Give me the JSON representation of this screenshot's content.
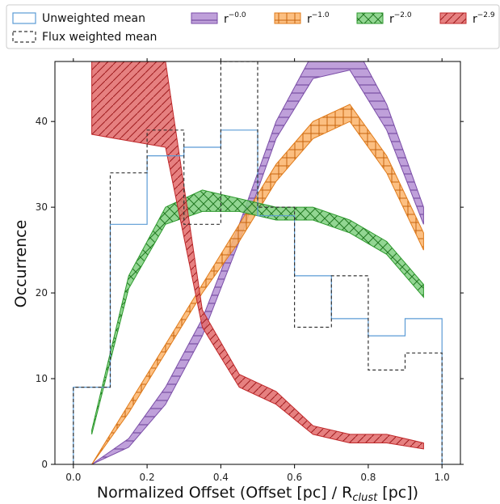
{
  "chart_data": {
    "type": "line",
    "xlabel_main": "Normalized Offset (Offset [pc] / R",
    "xlabel_sub": "clust",
    "xlabel_tail": " [pc])",
    "ylabel": "Occurrence",
    "xlim": [
      -0.05,
      1.05
    ],
    "ylim": [
      0,
      47
    ],
    "xticks": [
      "0.0",
      "0.2",
      "0.4",
      "0.6",
      "0.8",
      "1.0"
    ],
    "xtick_values": [
      0,
      0.2,
      0.4,
      0.6,
      0.8,
      1.0
    ],
    "yticks": [
      "0",
      "10",
      "20",
      "30",
      "40"
    ],
    "ytick_values": [
      0,
      10,
      20,
      30,
      40
    ],
    "legend_position": "top",
    "histograms": [
      {
        "name": "Unweighted mean",
        "style": "solid",
        "color": "#5b9bd5",
        "bin_edges": [
          0,
          0.1,
          0.2,
          0.3,
          0.4,
          0.5,
          0.6,
          0.7,
          0.8,
          0.9,
          1.0
        ],
        "counts": [
          9,
          28,
          36,
          37,
          39,
          29,
          22,
          17,
          15,
          17
        ]
      },
      {
        "name": "Flux weighted mean",
        "style": "dashed",
        "color": "#333333",
        "bin_edges": [
          0,
          0.1,
          0.2,
          0.3,
          0.4,
          0.5,
          0.6,
          0.7,
          0.8,
          0.9,
          1.0
        ],
        "counts": [
          9,
          34,
          39,
          28,
          47,
          30,
          16,
          22,
          11,
          13
        ]
      }
    ],
    "bands": [
      {
        "label_base": "r",
        "label_exp": "−0.0",
        "fill": "#b48fd4",
        "edge": "#7b4ea8",
        "hatch": "horizontal",
        "x": [
          0.05,
          0.15,
          0.25,
          0.35,
          0.45,
          0.55,
          0.65,
          0.75,
          0.85,
          0.95
        ],
        "lower": [
          0,
          2,
          7,
          15,
          26,
          38,
          45,
          46,
          39,
          28
        ],
        "upper": [
          0,
          3,
          9,
          17,
          28,
          40,
          48,
          50,
          42,
          30
        ]
      },
      {
        "label_base": "r",
        "label_exp": "−1.0",
        "fill": "#fbb46b",
        "edge": "#e07b1a",
        "hatch": "grid",
        "x": [
          0.05,
          0.15,
          0.25,
          0.35,
          0.45,
          0.55,
          0.65,
          0.75,
          0.85,
          0.95
        ],
        "lower": [
          0,
          6,
          13,
          20,
          26,
          33,
          38,
          40,
          34,
          25
        ],
        "upper": [
          0,
          7,
          14,
          21,
          28,
          35,
          40,
          42,
          36,
          27
        ]
      },
      {
        "label_base": "r",
        "label_exp": "−2.0",
        "fill": "#7fcf7f",
        "edge": "#2e9a2e",
        "hatch": "cross",
        "x": [
          0.05,
          0.15,
          0.25,
          0.35,
          0.45,
          0.55,
          0.65,
          0.75,
          0.85,
          0.95
        ],
        "lower": [
          3.5,
          20.5,
          28,
          29.5,
          29.5,
          28.5,
          28.5,
          27,
          24.5,
          19.5
        ],
        "upper": [
          4,
          22,
          30,
          32,
          31,
          30,
          30,
          28.5,
          26,
          21
        ]
      },
      {
        "label_base": "r",
        "label_exp": "−2.9",
        "fill": "#e26a6a",
        "edge": "#c0282a",
        "hatch": "diagonal",
        "x": [
          0.05,
          0.25,
          0.35,
          0.45,
          0.55,
          0.65,
          0.75,
          0.85,
          0.95
        ],
        "lower": [
          38.5,
          37,
          16,
          9,
          7,
          3.5,
          2.5,
          2.5,
          1.8
        ],
        "upper": [
          47,
          47,
          18,
          10.5,
          8.5,
          4.5,
          3.5,
          3.5,
          2.5
        ]
      }
    ]
  }
}
